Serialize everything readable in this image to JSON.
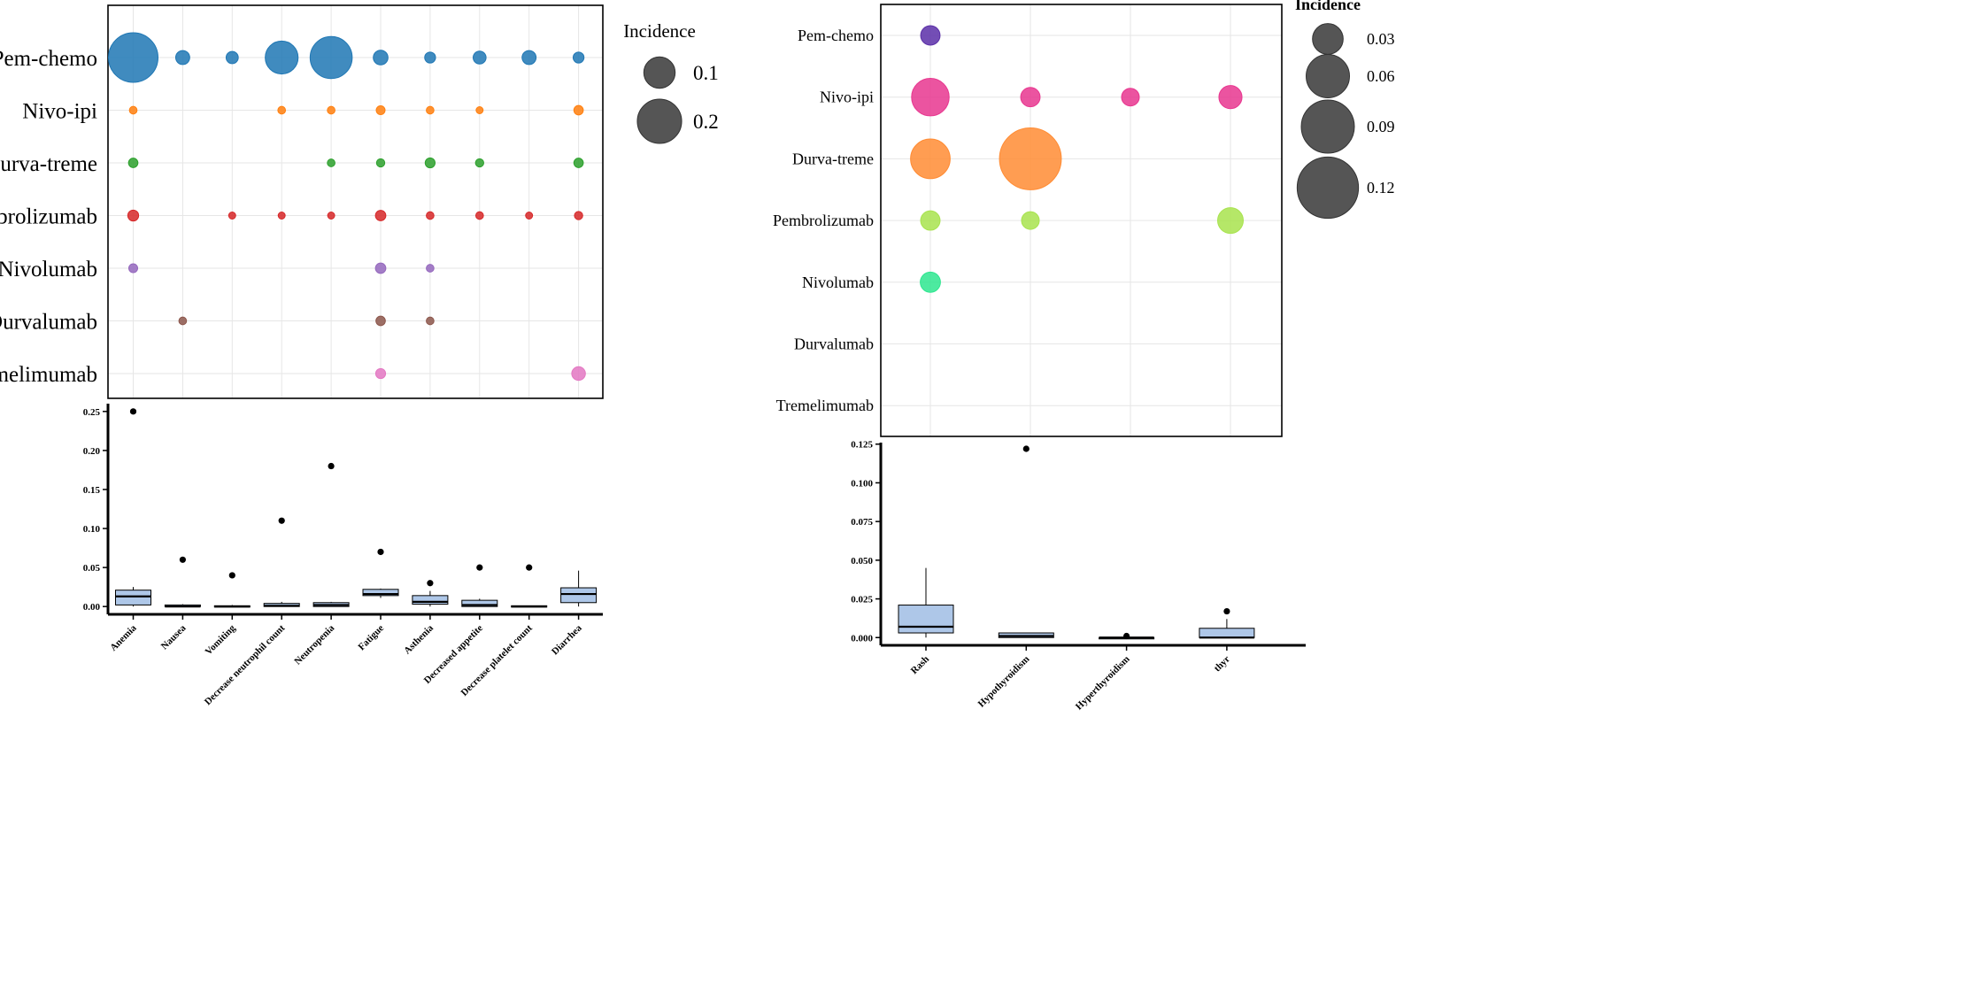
{
  "chart_data": [
    {
      "type": "scatter",
      "subtype": "bubble",
      "title": "",
      "rows": [
        "Pem-chemo",
        "Nivo-ipi",
        "Durva-treme",
        "Pembrolizumab",
        "Nivolumab",
        "Durvalumab",
        "Tremelimumab"
      ],
      "columns": [
        "Anemia",
        "Nausea",
        "Vomiting",
        "Decrease neutrophil count",
        "Neutropenia",
        "Fatigue",
        "Asthenia",
        "Decreased appetite",
        "Decrease platelet count",
        "Diarrhea"
      ],
      "row_colors": [
        "#1f77b4",
        "#ff7f0e",
        "#2ca02c",
        "#d62728",
        "#9467bd",
        "#8c564b",
        "#e377c2"
      ],
      "legend": {
        "title": "Incidence",
        "values": [
          0.1,
          0.2
        ],
        "labels": [
          "0.1",
          "0.2"
        ],
        "color": "#555555"
      },
      "points": [
        {
          "row": 0,
          "col": 0,
          "value": 0.25
        },
        {
          "row": 0,
          "col": 1,
          "value": 0.02
        },
        {
          "row": 0,
          "col": 2,
          "value": 0.015
        },
        {
          "row": 0,
          "col": 3,
          "value": 0.11
        },
        {
          "row": 0,
          "col": 4,
          "value": 0.18
        },
        {
          "row": 0,
          "col": 5,
          "value": 0.022
        },
        {
          "row": 0,
          "col": 6,
          "value": 0.012
        },
        {
          "row": 0,
          "col": 7,
          "value": 0.017
        },
        {
          "row": 0,
          "col": 8,
          "value": 0.02
        },
        {
          "row": 0,
          "col": 9,
          "value": 0.012
        },
        {
          "row": 1,
          "col": 0,
          "value": 0.006
        },
        {
          "row": 1,
          "col": 3,
          "value": 0.006
        },
        {
          "row": 1,
          "col": 4,
          "value": 0.006
        },
        {
          "row": 1,
          "col": 5,
          "value": 0.008
        },
        {
          "row": 1,
          "col": 6,
          "value": 0.006
        },
        {
          "row": 1,
          "col": 7,
          "value": 0.005
        },
        {
          "row": 1,
          "col": 9,
          "value": 0.009
        },
        {
          "row": 2,
          "col": 0,
          "value": 0.009
        },
        {
          "row": 2,
          "col": 4,
          "value": 0.006
        },
        {
          "row": 2,
          "col": 5,
          "value": 0.007
        },
        {
          "row": 2,
          "col": 6,
          "value": 0.01
        },
        {
          "row": 2,
          "col": 7,
          "value": 0.007
        },
        {
          "row": 2,
          "col": 9,
          "value": 0.009
        },
        {
          "row": 3,
          "col": 0,
          "value": 0.012
        },
        {
          "row": 3,
          "col": 2,
          "value": 0.005
        },
        {
          "row": 3,
          "col": 3,
          "value": 0.005
        },
        {
          "row": 3,
          "col": 4,
          "value": 0.005
        },
        {
          "row": 3,
          "col": 5,
          "value": 0.011
        },
        {
          "row": 3,
          "col": 6,
          "value": 0.006
        },
        {
          "row": 3,
          "col": 7,
          "value": 0.006
        },
        {
          "row": 3,
          "col": 8,
          "value": 0.005
        },
        {
          "row": 3,
          "col": 9,
          "value": 0.007
        },
        {
          "row": 4,
          "col": 0,
          "value": 0.008
        },
        {
          "row": 4,
          "col": 5,
          "value": 0.011
        },
        {
          "row": 4,
          "col": 6,
          "value": 0.006
        },
        {
          "row": 5,
          "col": 1,
          "value": 0.006
        },
        {
          "row": 5,
          "col": 5,
          "value": 0.009
        },
        {
          "row": 5,
          "col": 6,
          "value": 0.006
        },
        {
          "row": 6,
          "col": 5,
          "value": 0.01
        },
        {
          "row": 6,
          "col": 9,
          "value": 0.019
        }
      ]
    },
    {
      "type": "box",
      "ylim": [
        -0.01,
        0.26
      ],
      "yticks": [
        0.0,
        0.05,
        0.1,
        0.15,
        0.2,
        0.25
      ],
      "ytick_labels": [
        "0.00",
        "0.05",
        "0.10",
        "0.15",
        "0.20",
        "0.25"
      ],
      "categories": [
        "Anemia",
        "Nausea",
        "Vomiting",
        "Decrease neutrophil count",
        "Neutropenia",
        "Fatigue",
        "Asthenia",
        "Decreased appetite",
        "Decrease platelet count",
        "Diarrhea"
      ],
      "box_color": "#aec7e8",
      "boxes": [
        {
          "q1": 0.002,
          "median": 0.013,
          "q3": 0.021,
          "whisker_low": 0.0,
          "whisker_high": 0.025,
          "outliers": [
            0.25
          ]
        },
        {
          "q1": 0.0,
          "median": 0.0,
          "q3": 0.002,
          "whisker_low": 0.0,
          "whisker_high": 0.003,
          "outliers": [
            0.06
          ]
        },
        {
          "q1": 0.0,
          "median": 0.0,
          "q3": 0.001,
          "whisker_low": 0.0,
          "whisker_high": 0.002,
          "outliers": [
            0.04
          ]
        },
        {
          "q1": 0.0,
          "median": 0.001,
          "q3": 0.004,
          "whisker_low": 0.0,
          "whisker_high": 0.006,
          "outliers": [
            0.11
          ]
        },
        {
          "q1": 0.0,
          "median": 0.002,
          "q3": 0.005,
          "whisker_low": 0.0,
          "whisker_high": 0.006,
          "outliers": [
            0.18
          ]
        },
        {
          "q1": 0.014,
          "median": 0.016,
          "q3": 0.022,
          "whisker_low": 0.011,
          "whisker_high": 0.023,
          "outliers": [
            0.07
          ]
        },
        {
          "q1": 0.003,
          "median": 0.006,
          "q3": 0.014,
          "whisker_low": 0.0,
          "whisker_high": 0.02,
          "outliers": [
            0.03
          ]
        },
        {
          "q1": 0.0,
          "median": 0.002,
          "q3": 0.008,
          "whisker_low": 0.0,
          "whisker_high": 0.01,
          "outliers": [
            0.05
          ]
        },
        {
          "q1": 0.0,
          "median": 0.0,
          "q3": 0.001,
          "whisker_low": 0.0,
          "whisker_high": 0.001,
          "outliers": [
            0.05
          ]
        },
        {
          "q1": 0.005,
          "median": 0.016,
          "q3": 0.024,
          "whisker_low": 0.0,
          "whisker_high": 0.046,
          "outliers": []
        }
      ]
    },
    {
      "type": "scatter",
      "subtype": "bubble",
      "title": "",
      "rows": [
        "Pem-chemo",
        "Nivo-ipi",
        "Durva-treme",
        "Pembrolizumab",
        "Nivolumab",
        "Durvalumab",
        "Tremelimumab"
      ],
      "columns": [
        "Rash",
        "Hypothyroidism",
        "Hyperthyroidism",
        "thyr"
      ],
      "row_colors": [
        "#5b2fa8",
        "#e8368f",
        "#ff8c34",
        "#a8e34e",
        "#2ee68f",
        "#888888",
        "#888888"
      ],
      "legend": {
        "title": "Incidence",
        "values": [
          0.03,
          0.06,
          0.09,
          0.12
        ],
        "labels": [
          "0.03",
          "0.06",
          "0.09",
          "0.12"
        ],
        "color": "#555555"
      },
      "points": [
        {
          "row": 0,
          "col": 0,
          "value": 0.012
        },
        {
          "row": 1,
          "col": 0,
          "value": 0.045
        },
        {
          "row": 1,
          "col": 1,
          "value": 0.012
        },
        {
          "row": 1,
          "col": 2,
          "value": 0.01
        },
        {
          "row": 1,
          "col": 3,
          "value": 0.017
        },
        {
          "row": 2,
          "col": 0,
          "value": 0.05
        },
        {
          "row": 2,
          "col": 1,
          "value": 0.122
        },
        {
          "row": 3,
          "col": 0,
          "value": 0.012
        },
        {
          "row": 3,
          "col": 1,
          "value": 0.01
        },
        {
          "row": 3,
          "col": 3,
          "value": 0.021
        },
        {
          "row": 4,
          "col": 0,
          "value": 0.013
        }
      ]
    },
    {
      "type": "box",
      "ylim": [
        -0.005,
        0.126
      ],
      "yticks": [
        0.0,
        0.025,
        0.05,
        0.075,
        0.1,
        0.125
      ],
      "ytick_labels": [
        "0.000",
        "0.025",
        "0.050",
        "0.075",
        "0.100",
        "0.125"
      ],
      "categories": [
        "Rash",
        "Hypothyroidism",
        "Hyperthyroidism",
        "thyr"
      ],
      "box_color": "#aec7e8",
      "boxes": [
        {
          "q1": 0.003,
          "median": 0.007,
          "q3": 0.021,
          "whisker_low": 0.0,
          "whisker_high": 0.045,
          "outliers": []
        },
        {
          "q1": 0.0,
          "median": 0.001,
          "q3": 0.003,
          "whisker_low": 0.0,
          "whisker_high": 0.003,
          "outliers": [
            0.122
          ]
        },
        {
          "q1": 0.0,
          "median": 0.0,
          "q3": 0.0,
          "whisker_low": 0.0,
          "whisker_high": 0.0,
          "outliers": [
            0.001
          ]
        },
        {
          "q1": 0.0,
          "median": 0.0,
          "q3": 0.006,
          "whisker_low": 0.0,
          "whisker_high": 0.012,
          "outliers": [
            0.017
          ]
        }
      ]
    }
  ]
}
